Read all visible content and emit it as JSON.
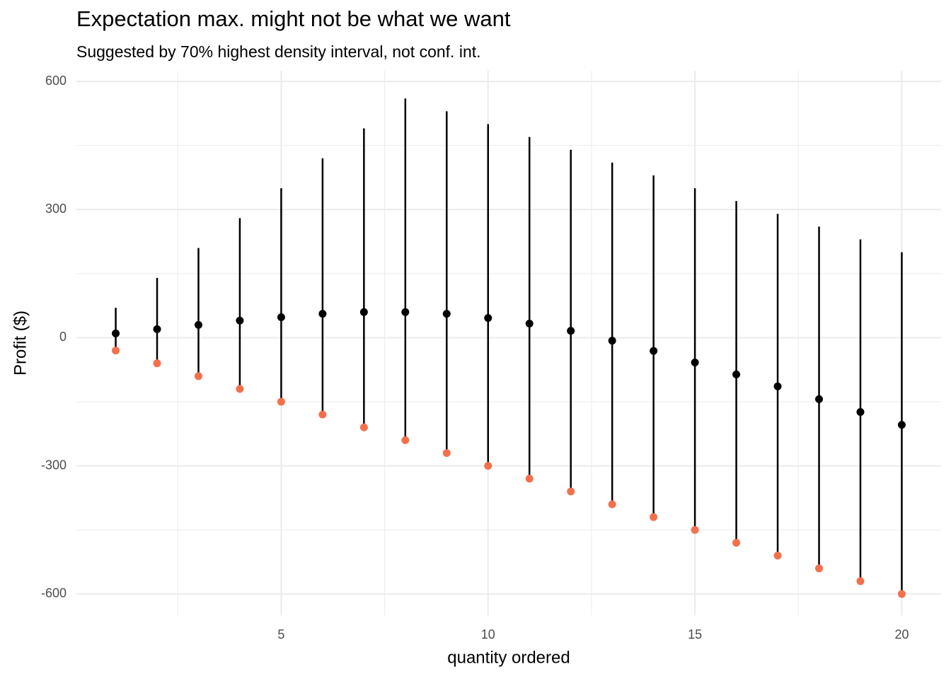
{
  "chart_data": {
    "type": "pointrange",
    "title": "Expectation max. might not be what we want",
    "subtitle": "Suggested by 70% highest density interval, not conf. int.",
    "xlabel": "quantity ordered",
    "ylabel": "Profit ($)",
    "x": [
      1,
      2,
      3,
      4,
      5,
      6,
      7,
      8,
      9,
      10,
      11,
      12,
      13,
      14,
      15,
      16,
      17,
      18,
      19,
      20
    ],
    "intervals": {
      "color": "#000000",
      "low": [
        -30,
        -60,
        -90,
        -120,
        -150,
        -180,
        -210,
        -240,
        -270,
        -300,
        -330,
        -360,
        -390,
        -420,
        -450,
        -480,
        -510,
        -540,
        -570,
        -600
      ],
      "high": [
        70,
        140,
        210,
        280,
        350,
        420,
        490,
        560,
        530,
        500,
        470,
        440,
        410,
        380,
        350,
        320,
        290,
        260,
        230,
        200
      ]
    },
    "series": [
      {
        "color": "#000000",
        "values": [
          10,
          20,
          30,
          40,
          48,
          56,
          60,
          60,
          56,
          46,
          33,
          16,
          -7,
          -31,
          -58,
          -86,
          -114,
          -144,
          -174,
          -204
        ]
      },
      {
        "color": "#f4704d",
        "values": [
          -30,
          -60,
          -90,
          -120,
          -150,
          -180,
          -210,
          -240,
          -270,
          -300,
          -330,
          -360,
          -390,
          -420,
          -450,
          -480,
          -510,
          -540,
          -570,
          -600
        ]
      }
    ],
    "xlim": [
      0.05,
      20.95
    ],
    "ylim": [
      -650,
      625
    ],
    "xticks": [
      5,
      10,
      15,
      20
    ],
    "yticks": [
      -600,
      -300,
      0,
      300,
      600
    ],
    "xminor": [
      2.5,
      7.5,
      12.5,
      17.5
    ],
    "yminor": [
      -450,
      -150,
      150,
      450
    ],
    "grid": true
  }
}
